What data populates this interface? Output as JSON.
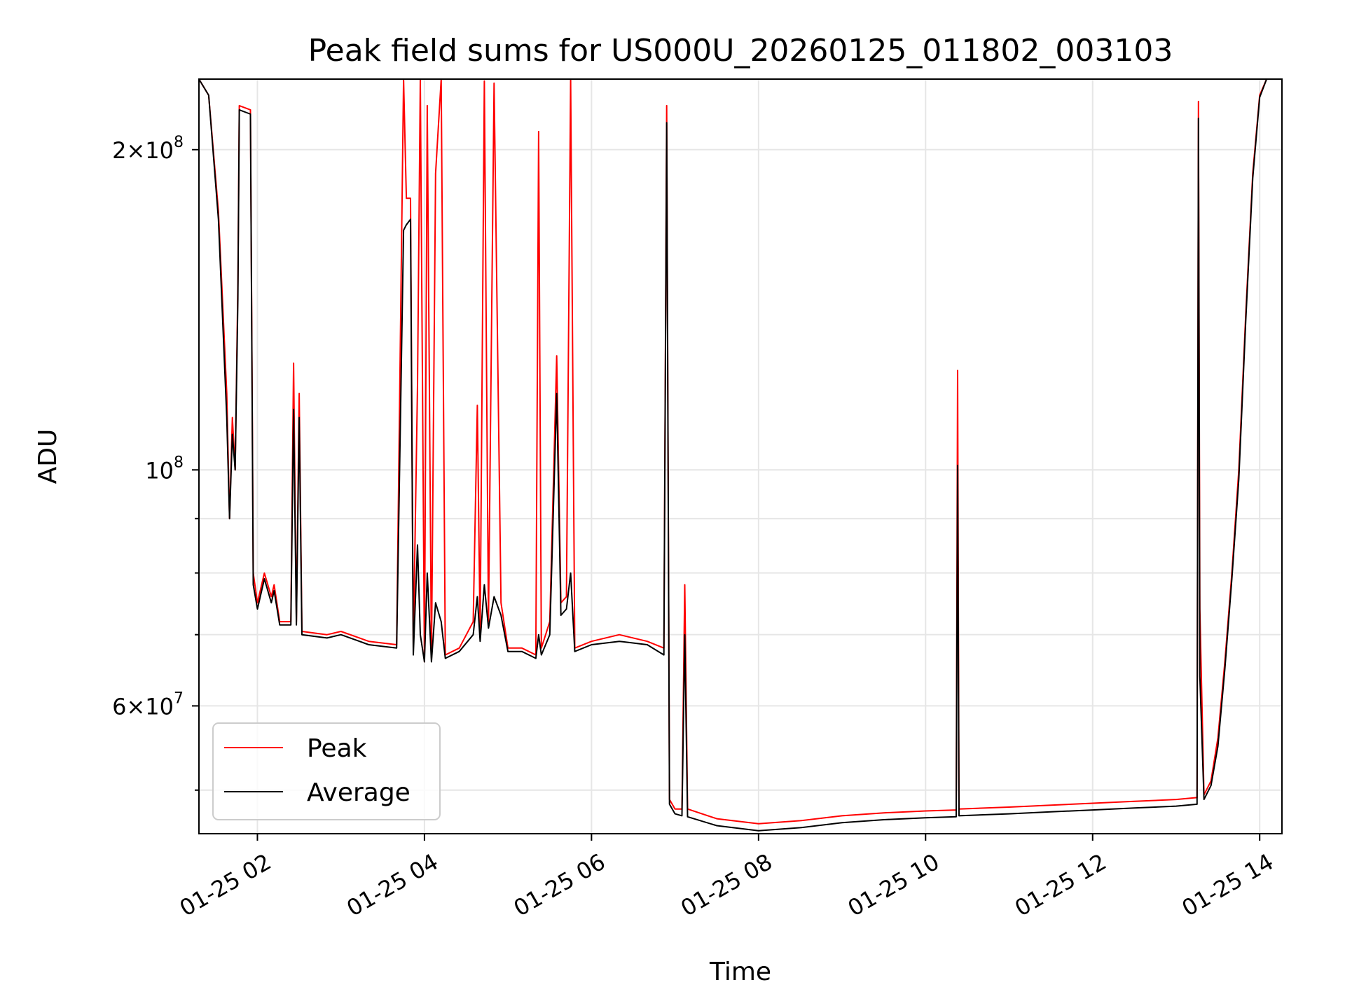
{
  "chart_data": {
    "type": "line",
    "title": "Peak field sums for US000U_20260125_011802_003103",
    "xlabel": "Time",
    "ylabel": "ADU",
    "y_scale": "log",
    "xlim": [
      "2026-01-25 01:18",
      "2026-01-25 14:16"
    ],
    "ylim": [
      45500000,
      233000000
    ],
    "grid": true,
    "legend_position": "lower-left",
    "x_ticks": [
      {
        "value": "2026-01-25 02:00",
        "label": "01-25 02"
      },
      {
        "value": "2026-01-25 04:00",
        "label": "01-25 04"
      },
      {
        "value": "2026-01-25 06:00",
        "label": "01-25 06"
      },
      {
        "value": "2026-01-25 08:00",
        "label": "01-25 08"
      },
      {
        "value": "2026-01-25 10:00",
        "label": "01-25 10"
      },
      {
        "value": "2026-01-25 12:00",
        "label": "01-25 12"
      },
      {
        "value": "2026-01-25 14:00",
        "label": "01-25 14"
      }
    ],
    "y_major_ticks": [
      {
        "value": 60000000,
        "mantissa": "6",
        "exponent": "7"
      },
      {
        "value": 100000000,
        "mantissa": "",
        "exponent": "8"
      },
      {
        "value": 200000000,
        "mantissa": "2",
        "exponent": "8"
      }
    ],
    "y_minor_ticks": [
      50000000,
      70000000,
      80000000,
      90000000
    ],
    "series": [
      {
        "name": "Peak",
        "color": "#ff0000",
        "points": [
          [
            "2026-01-25 01:18",
            233000000
          ],
          [
            "2026-01-25 01:25",
            225000000
          ],
          [
            "2026-01-25 01:32",
            175000000
          ],
          [
            "2026-01-25 01:38",
            118000000
          ],
          [
            "2026-01-25 01:40",
            90000000
          ],
          [
            "2026-01-25 01:42",
            112000000
          ],
          [
            "2026-01-25 01:44",
            100000000
          ],
          [
            "2026-01-25 01:46",
            150000000
          ],
          [
            "2026-01-25 01:47",
            220000000
          ],
          [
            "2026-01-25 01:55",
            218000000
          ],
          [
            "2026-01-25 01:57",
            80000000
          ],
          [
            "2026-01-25 02:00",
            75000000
          ],
          [
            "2026-01-25 02:05",
            80000000
          ],
          [
            "2026-01-25 02:10",
            76000000
          ],
          [
            "2026-01-25 02:12",
            78000000
          ],
          [
            "2026-01-25 02:16",
            72000000
          ],
          [
            "2026-01-25 02:24",
            72000000
          ],
          [
            "2026-01-25 02:26",
            126000000
          ],
          [
            "2026-01-25 02:28",
            72000000
          ],
          [
            "2026-01-25 02:30",
            118000000
          ],
          [
            "2026-01-25 02:32",
            70500000
          ],
          [
            "2026-01-25 02:50",
            70000000
          ],
          [
            "2026-01-25 03:00",
            70500000
          ],
          [
            "2026-01-25 03:20",
            69000000
          ],
          [
            "2026-01-25 03:40",
            68500000
          ],
          [
            "2026-01-25 03:45",
            233000000
          ],
          [
            "2026-01-25 03:47",
            180000000
          ],
          [
            "2026-01-25 03:50",
            180000000
          ],
          [
            "2026-01-25 03:52",
            68000000
          ],
          [
            "2026-01-25 03:55",
            120000000
          ],
          [
            "2026-01-25 03:57",
            233000000
          ],
          [
            "2026-01-25 04:00",
            66000000
          ],
          [
            "2026-01-25 04:02",
            220000000
          ],
          [
            "2026-01-25 04:05",
            66500000
          ],
          [
            "2026-01-25 04:08",
            190000000
          ],
          [
            "2026-01-25 04:12",
            233000000
          ],
          [
            "2026-01-25 04:15",
            67000000
          ],
          [
            "2026-01-25 04:25",
            68000000
          ],
          [
            "2026-01-25 04:35",
            72000000
          ],
          [
            "2026-01-25 04:38",
            115000000
          ],
          [
            "2026-01-25 04:40",
            70000000
          ],
          [
            "2026-01-25 04:43",
            232000000
          ],
          [
            "2026-01-25 04:46",
            72000000
          ],
          [
            "2026-01-25 04:50",
            231000000
          ],
          [
            "2026-01-25 04:55",
            75000000
          ],
          [
            "2026-01-25 05:00",
            68000000
          ],
          [
            "2026-01-25 05:10",
            68000000
          ],
          [
            "2026-01-25 05:20",
            67000000
          ],
          [
            "2026-01-25 05:22",
            208000000
          ],
          [
            "2026-01-25 05:24",
            68000000
          ],
          [
            "2026-01-25 05:30",
            72000000
          ],
          [
            "2026-01-25 05:35",
            128000000
          ],
          [
            "2026-01-25 05:38",
            75000000
          ],
          [
            "2026-01-25 05:42",
            76000000
          ],
          [
            "2026-01-25 05:45",
            233000000
          ],
          [
            "2026-01-25 05:48",
            68000000
          ],
          [
            "2026-01-25 06:00",
            69000000
          ],
          [
            "2026-01-25 06:20",
            70000000
          ],
          [
            "2026-01-25 06:40",
            69000000
          ],
          [
            "2026-01-25 06:52",
            68000000
          ],
          [
            "2026-01-25 06:54",
            220000000
          ],
          [
            "2026-01-25 06:56",
            49000000
          ],
          [
            "2026-01-25 07:00",
            48000000
          ],
          [
            "2026-01-25 07:05",
            48000000
          ],
          [
            "2026-01-25 07:07",
            78000000
          ],
          [
            "2026-01-25 07:09",
            48000000
          ],
          [
            "2026-01-25 07:30",
            47000000
          ],
          [
            "2026-01-25 08:00",
            46500000
          ],
          [
            "2026-01-25 08:30",
            46800000
          ],
          [
            "2026-01-25 09:00",
            47300000
          ],
          [
            "2026-01-25 09:30",
            47600000
          ],
          [
            "2026-01-25 10:00",
            47800000
          ],
          [
            "2026-01-25 10:22",
            47900000
          ],
          [
            "2026-01-25 10:23",
            124000000
          ],
          [
            "2026-01-25 10:24",
            48000000
          ],
          [
            "2026-01-25 11:00",
            48200000
          ],
          [
            "2026-01-25 11:30",
            48400000
          ],
          [
            "2026-01-25 12:00",
            48600000
          ],
          [
            "2026-01-25 12:30",
            48800000
          ],
          [
            "2026-01-25 13:00",
            49000000
          ],
          [
            "2026-01-25 13:15",
            49200000
          ],
          [
            "2026-01-25 13:16",
            222000000
          ],
          [
            "2026-01-25 13:17",
            74000000
          ],
          [
            "2026-01-25 13:20",
            49500000
          ],
          [
            "2026-01-25 13:25",
            51000000
          ],
          [
            "2026-01-25 13:30",
            56000000
          ],
          [
            "2026-01-25 13:35",
            66000000
          ],
          [
            "2026-01-25 13:40",
            80000000
          ],
          [
            "2026-01-25 13:45",
            100000000
          ],
          [
            "2026-01-25 13:50",
            140000000
          ],
          [
            "2026-01-25 13:55",
            190000000
          ],
          [
            "2026-01-25 14:00",
            225000000
          ],
          [
            "2026-01-25 14:05",
            233000000
          ]
        ]
      },
      {
        "name": "Average",
        "color": "#000000",
        "points": [
          [
            "2026-01-25 01:18",
            233000000
          ],
          [
            "2026-01-25 01:25",
            225000000
          ],
          [
            "2026-01-25 01:32",
            172000000
          ],
          [
            "2026-01-25 01:38",
            112000000
          ],
          [
            "2026-01-25 01:40",
            90000000
          ],
          [
            "2026-01-25 01:42",
            108000000
          ],
          [
            "2026-01-25 01:44",
            100000000
          ],
          [
            "2026-01-25 01:46",
            145000000
          ],
          [
            "2026-01-25 01:47",
            218000000
          ],
          [
            "2026-01-25 01:55",
            216000000
          ],
          [
            "2026-01-25 01:57",
            78000000
          ],
          [
            "2026-01-25 02:00",
            74000000
          ],
          [
            "2026-01-25 02:05",
            79000000
          ],
          [
            "2026-01-25 02:10",
            75000000
          ],
          [
            "2026-01-25 02:12",
            77000000
          ],
          [
            "2026-01-25 02:16",
            71500000
          ],
          [
            "2026-01-25 02:24",
            71500000
          ],
          [
            "2026-01-25 02:26",
            114000000
          ],
          [
            "2026-01-25 02:28",
            71500000
          ],
          [
            "2026-01-25 02:30",
            112000000
          ],
          [
            "2026-01-25 02:32",
            70000000
          ],
          [
            "2026-01-25 02:50",
            69500000
          ],
          [
            "2026-01-25 03:00",
            70000000
          ],
          [
            "2026-01-25 03:20",
            68500000
          ],
          [
            "2026-01-25 03:40",
            68000000
          ],
          [
            "2026-01-25 03:45",
            168000000
          ],
          [
            "2026-01-25 03:47",
            170000000
          ],
          [
            "2026-01-25 03:50",
            172000000
          ],
          [
            "2026-01-25 03:52",
            67000000
          ],
          [
            "2026-01-25 03:55",
            85000000
          ],
          [
            "2026-01-25 03:57",
            70000000
          ],
          [
            "2026-01-25 04:00",
            66000000
          ],
          [
            "2026-01-25 04:02",
            80000000
          ],
          [
            "2026-01-25 04:05",
            66000000
          ],
          [
            "2026-01-25 04:08",
            75000000
          ],
          [
            "2026-01-25 04:12",
            72000000
          ],
          [
            "2026-01-25 04:15",
            66500000
          ],
          [
            "2026-01-25 04:25",
            67500000
          ],
          [
            "2026-01-25 04:35",
            70000000
          ],
          [
            "2026-01-25 04:38",
            76000000
          ],
          [
            "2026-01-25 04:40",
            69000000
          ],
          [
            "2026-01-25 04:43",
            78000000
          ],
          [
            "2026-01-25 04:46",
            71000000
          ],
          [
            "2026-01-25 04:50",
            76000000
          ],
          [
            "2026-01-25 04:55",
            73000000
          ],
          [
            "2026-01-25 05:00",
            67500000
          ],
          [
            "2026-01-25 05:10",
            67500000
          ],
          [
            "2026-01-25 05:20",
            66500000
          ],
          [
            "2026-01-25 05:22",
            70000000
          ],
          [
            "2026-01-25 05:24",
            67000000
          ],
          [
            "2026-01-25 05:30",
            70000000
          ],
          [
            "2026-01-25 05:35",
            118000000
          ],
          [
            "2026-01-25 05:38",
            73000000
          ],
          [
            "2026-01-25 05:42",
            74000000
          ],
          [
            "2026-01-25 05:45",
            80000000
          ],
          [
            "2026-01-25 05:48",
            67500000
          ],
          [
            "2026-01-25 06:00",
            68500000
          ],
          [
            "2026-01-25 06:20",
            69000000
          ],
          [
            "2026-01-25 06:40",
            68500000
          ],
          [
            "2026-01-25 06:52",
            67000000
          ],
          [
            "2026-01-25 06:54",
            212000000
          ],
          [
            "2026-01-25 06:56",
            48500000
          ],
          [
            "2026-01-25 07:00",
            47500000
          ],
          [
            "2026-01-25 07:05",
            47300000
          ],
          [
            "2026-01-25 07:07",
            70000000
          ],
          [
            "2026-01-25 07:09",
            47200000
          ],
          [
            "2026-01-25 07:30",
            46300000
          ],
          [
            "2026-01-25 08:00",
            45800000
          ],
          [
            "2026-01-25 08:30",
            46100000
          ],
          [
            "2026-01-25 09:00",
            46600000
          ],
          [
            "2026-01-25 09:30",
            46900000
          ],
          [
            "2026-01-25 10:00",
            47100000
          ],
          [
            "2026-01-25 10:22",
            47200000
          ],
          [
            "2026-01-25 10:23",
            101000000
          ],
          [
            "2026-01-25 10:24",
            47300000
          ],
          [
            "2026-01-25 11:00",
            47500000
          ],
          [
            "2026-01-25 11:30",
            47700000
          ],
          [
            "2026-01-25 12:00",
            47900000
          ],
          [
            "2026-01-25 12:30",
            48100000
          ],
          [
            "2026-01-25 13:00",
            48300000
          ],
          [
            "2026-01-25 13:15",
            48500000
          ],
          [
            "2026-01-25 13:16",
            214000000
          ],
          [
            "2026-01-25 13:17",
            64000000
          ],
          [
            "2026-01-25 13:20",
            49000000
          ],
          [
            "2026-01-25 13:25",
            50500000
          ],
          [
            "2026-01-25 13:30",
            55000000
          ],
          [
            "2026-01-25 13:35",
            65000000
          ],
          [
            "2026-01-25 13:40",
            79000000
          ],
          [
            "2026-01-25 13:45",
            98000000
          ],
          [
            "2026-01-25 13:50",
            138000000
          ],
          [
            "2026-01-25 13:55",
            188000000
          ],
          [
            "2026-01-25 14:00",
            224000000
          ],
          [
            "2026-01-25 14:05",
            233000000
          ]
        ]
      }
    ]
  }
}
